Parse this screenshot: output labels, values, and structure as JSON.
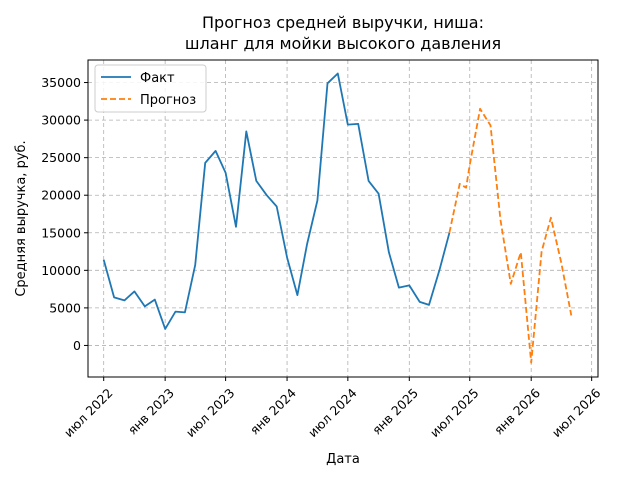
{
  "chart_data": {
    "type": "line",
    "title": [
      "Прогноз средней выручки, ниша:",
      "шланг для мойки высокого давления"
    ],
    "xlabel": "Дата",
    "ylabel": "Средняя выручка, руб.",
    "ylim": [
      -4200,
      38000
    ],
    "xlim": [
      "2022-05-15",
      "2026-07-20"
    ],
    "grid": true,
    "legend_position": "top-left",
    "y_ticks": [
      0,
      5000,
      10000,
      15000,
      20000,
      25000,
      30000,
      35000
    ],
    "y_tick_labels": [
      "0",
      "5000",
      "10000",
      "15000",
      "20000",
      "25000",
      "30000",
      "35000"
    ],
    "x_ticks": [
      "2022-07-01",
      "2023-01-01",
      "2023-07-01",
      "2024-01-01",
      "2024-07-01",
      "2025-01-01",
      "2025-07-01",
      "2026-01-01",
      "2026-07-01"
    ],
    "x_tick_labels": [
      "июл 2022",
      "янв 2023",
      "июл 2023",
      "янв 2024",
      "июл 2024",
      "янв 2025",
      "июл 2025",
      "янв 2026",
      "июл 2026"
    ],
    "series": [
      {
        "name": "Факт",
        "color": "#1f77b4",
        "style": "solid",
        "x": [
          "2022-07-01",
          "2022-08-01",
          "2022-09-01",
          "2022-10-01",
          "2022-11-01",
          "2022-12-01",
          "2023-01-01",
          "2023-02-01",
          "2023-03-01",
          "2023-04-01",
          "2023-05-01",
          "2023-06-01",
          "2023-07-01",
          "2023-08-01",
          "2023-09-01",
          "2023-10-01",
          "2023-11-01",
          "2023-12-01",
          "2024-01-01",
          "2024-02-01",
          "2024-03-01",
          "2024-04-01",
          "2024-05-01",
          "2024-06-01",
          "2024-07-01",
          "2024-08-01",
          "2024-09-01",
          "2024-10-01",
          "2024-11-01",
          "2024-12-01",
          "2025-01-01",
          "2025-02-01",
          "2025-03-01",
          "2025-04-01",
          "2025-05-01"
        ],
        "y": [
          11400,
          6400,
          6000,
          7200,
          5200,
          6100,
          2200,
          4500,
          4400,
          10700,
          24300,
          25900,
          23000,
          15800,
          28500,
          21900,
          20000,
          18500,
          11700,
          6700,
          13500,
          19300,
          34900,
          36200,
          29400,
          29500,
          21900,
          20200,
          12400,
          7700,
          8000,
          5800,
          5400,
          10000,
          15000
        ]
      },
      {
        "name": "Прогноз",
        "color": "#ff7f0e",
        "style": "dashed",
        "x": [
          "2025-05-01",
          "2025-06-01",
          "2025-06-20",
          "2025-07-01",
          "2025-08-01",
          "2025-09-01",
          "2025-10-01",
          "2025-11-01",
          "2025-12-01",
          "2026-01-01",
          "2026-02-01",
          "2026-03-01",
          "2026-04-01",
          "2026-05-01"
        ],
        "y": [
          15000,
          21500,
          21000,
          24000,
          31500,
          29300,
          16700,
          8200,
          12400,
          -2300,
          12500,
          17000,
          11000,
          4000
        ]
      }
    ]
  }
}
